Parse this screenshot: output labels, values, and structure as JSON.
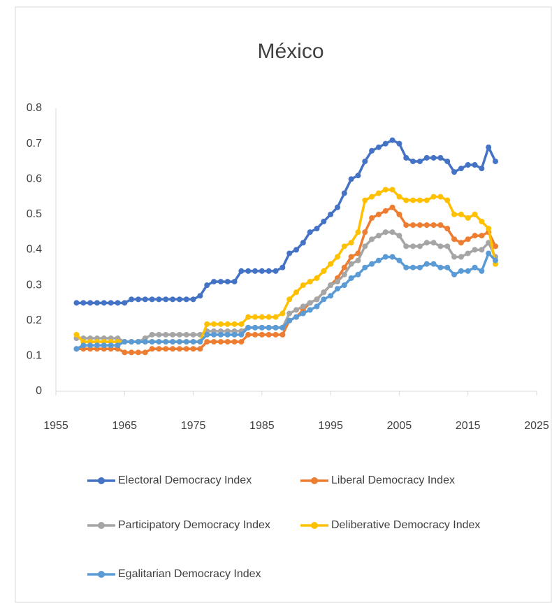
{
  "chart_data": {
    "type": "line",
    "title": "México",
    "x": [
      1958,
      1959,
      1960,
      1961,
      1962,
      1963,
      1964,
      1965,
      1966,
      1967,
      1968,
      1969,
      1970,
      1971,
      1972,
      1973,
      1974,
      1975,
      1976,
      1977,
      1978,
      1979,
      1980,
      1981,
      1982,
      1983,
      1984,
      1985,
      1986,
      1987,
      1988,
      1989,
      1990,
      1991,
      1992,
      1993,
      1994,
      1995,
      1996,
      1997,
      1998,
      1999,
      2000,
      2001,
      2002,
      2003,
      2004,
      2005,
      2006,
      2007,
      2008,
      2009,
      2010,
      2011,
      2012,
      2013,
      2014,
      2015,
      2016,
      2017,
      2018,
      2019
    ],
    "series": [
      {
        "name": "Electoral Democracy Index",
        "color": "#4472c4",
        "values": [
          0.25,
          0.25,
          0.25,
          0.25,
          0.25,
          0.25,
          0.25,
          0.25,
          0.26,
          0.26,
          0.26,
          0.26,
          0.26,
          0.26,
          0.26,
          0.26,
          0.26,
          0.26,
          0.27,
          0.3,
          0.31,
          0.31,
          0.31,
          0.31,
          0.34,
          0.34,
          0.34,
          0.34,
          0.34,
          0.34,
          0.35,
          0.39,
          0.4,
          0.42,
          0.45,
          0.46,
          0.48,
          0.5,
          0.52,
          0.56,
          0.6,
          0.61,
          0.65,
          0.68,
          0.69,
          0.7,
          0.71,
          0.7,
          0.66,
          0.65,
          0.65,
          0.66,
          0.66,
          0.66,
          0.65,
          0.62,
          0.63,
          0.64,
          0.64,
          0.63,
          0.69,
          0.65
        ]
      },
      {
        "name": "Liberal Democracy Index",
        "color": "#ed7d31",
        "values": [
          0.12,
          0.12,
          0.12,
          0.12,
          0.12,
          0.12,
          0.12,
          0.11,
          0.11,
          0.11,
          0.11,
          0.12,
          0.12,
          0.12,
          0.12,
          0.12,
          0.12,
          0.12,
          0.12,
          0.14,
          0.14,
          0.14,
          0.14,
          0.14,
          0.14,
          0.16,
          0.16,
          0.16,
          0.16,
          0.16,
          0.16,
          0.2,
          0.21,
          0.23,
          0.25,
          0.26,
          0.28,
          0.3,
          0.32,
          0.35,
          0.38,
          0.39,
          0.45,
          0.49,
          0.5,
          0.51,
          0.52,
          0.5,
          0.47,
          0.47,
          0.47,
          0.47,
          0.47,
          0.47,
          0.46,
          0.43,
          0.42,
          0.43,
          0.44,
          0.44,
          0.45,
          0.41
        ]
      },
      {
        "name": "Participatory Democracy Index",
        "color": "#a5a5a5",
        "values": [
          0.15,
          0.15,
          0.15,
          0.15,
          0.15,
          0.15,
          0.15,
          0.14,
          0.14,
          0.14,
          0.15,
          0.16,
          0.16,
          0.16,
          0.16,
          0.16,
          0.16,
          0.16,
          0.16,
          0.17,
          0.17,
          0.17,
          0.17,
          0.17,
          0.17,
          0.18,
          0.18,
          0.18,
          0.18,
          0.18,
          0.18,
          0.22,
          0.23,
          0.24,
          0.25,
          0.26,
          0.28,
          0.3,
          0.31,
          0.33,
          0.36,
          0.37,
          0.41,
          0.43,
          0.44,
          0.45,
          0.45,
          0.44,
          0.41,
          0.41,
          0.41,
          0.42,
          0.42,
          0.41,
          0.41,
          0.38,
          0.38,
          0.39,
          0.4,
          0.4,
          0.42,
          0.38
        ]
      },
      {
        "name": "Deliberative Democracy Index",
        "color": "#ffc000",
        "values": [
          0.16,
          0.14,
          0.14,
          0.14,
          0.14,
          0.14,
          0.14,
          0.14,
          0.14,
          0.14,
          0.14,
          0.14,
          0.14,
          0.14,
          0.14,
          0.14,
          0.14,
          0.14,
          0.14,
          0.19,
          0.19,
          0.19,
          0.19,
          0.19,
          0.19,
          0.21,
          0.21,
          0.21,
          0.21,
          0.21,
          0.22,
          0.26,
          0.28,
          0.3,
          0.31,
          0.32,
          0.34,
          0.36,
          0.38,
          0.41,
          0.42,
          0.45,
          0.54,
          0.55,
          0.56,
          0.57,
          0.57,
          0.55,
          0.54,
          0.54,
          0.54,
          0.54,
          0.55,
          0.55,
          0.54,
          0.5,
          0.5,
          0.49,
          0.5,
          0.48,
          0.46,
          0.36
        ]
      },
      {
        "name": "Egalitarian Democracy Index",
        "color": "#5b9bd5",
        "values": [
          0.12,
          0.13,
          0.13,
          0.13,
          0.13,
          0.13,
          0.13,
          0.14,
          0.14,
          0.14,
          0.14,
          0.14,
          0.14,
          0.14,
          0.14,
          0.14,
          0.14,
          0.14,
          0.14,
          0.16,
          0.16,
          0.16,
          0.16,
          0.16,
          0.16,
          0.18,
          0.18,
          0.18,
          0.18,
          0.18,
          0.18,
          0.2,
          0.21,
          0.22,
          0.23,
          0.24,
          0.26,
          0.27,
          0.29,
          0.3,
          0.32,
          0.33,
          0.35,
          0.36,
          0.37,
          0.38,
          0.38,
          0.37,
          0.35,
          0.35,
          0.35,
          0.36,
          0.36,
          0.35,
          0.35,
          0.33,
          0.34,
          0.34,
          0.35,
          0.34,
          0.39,
          0.37
        ]
      }
    ],
    "xlim": [
      1955,
      2025
    ],
    "xticks": [
      1955,
      1965,
      1975,
      1985,
      1995,
      2005,
      2015,
      2025
    ],
    "ylim": [
      0,
      0.8
    ],
    "yticks": [
      0,
      0.1,
      0.2,
      0.3,
      0.4,
      0.5,
      0.6,
      0.7,
      0.8
    ],
    "grid": false,
    "legend": "bottom"
  }
}
